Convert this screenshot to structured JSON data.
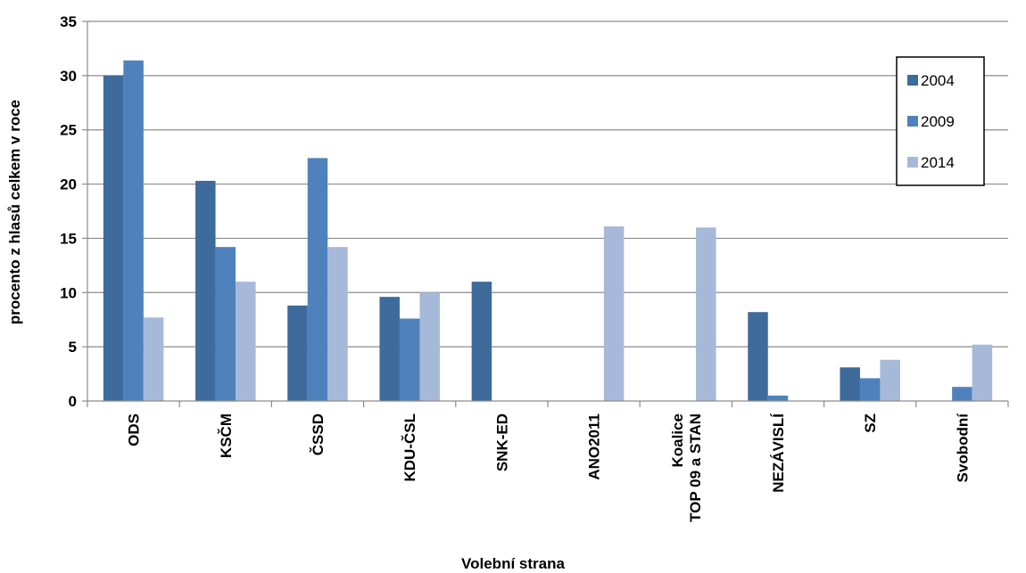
{
  "chart_data": {
    "type": "bar",
    "title": "",
    "xlabel": "Volební strana",
    "ylabel": "procento z hlasů celkem v roce",
    "ylim": [
      0,
      35
    ],
    "yticks": [
      0,
      5,
      10,
      15,
      20,
      25,
      30,
      35
    ],
    "grid": true,
    "legend_position": "top-right",
    "categories": [
      [
        "ODS"
      ],
      [
        "KSČM"
      ],
      [
        "ČSSD"
      ],
      [
        "KDU-ČSL"
      ],
      [
        "SNK-ED"
      ],
      [
        "ANO2011"
      ],
      [
        "Koalice",
        "TOP 09 a STAN"
      ],
      [
        "NEZÁVISLÍ"
      ],
      [
        "SZ"
      ],
      [
        "Svobodní"
      ]
    ],
    "series": [
      {
        "name": "2004",
        "color": "#3e6a9c",
        "values": [
          30.0,
          20.3,
          8.8,
          9.6,
          11.0,
          0,
          0,
          8.2,
          3.1,
          0
        ]
      },
      {
        "name": "2009",
        "color": "#4f81bd",
        "values": [
          31.4,
          14.2,
          22.4,
          7.6,
          0,
          0,
          0,
          0.5,
          2.1,
          1.3
        ]
      },
      {
        "name": "2014",
        "color": "#a7b9d9",
        "values": [
          7.7,
          11.0,
          14.2,
          10.0,
          0,
          16.1,
          16.0,
          0,
          3.8,
          5.2
        ]
      }
    ]
  }
}
